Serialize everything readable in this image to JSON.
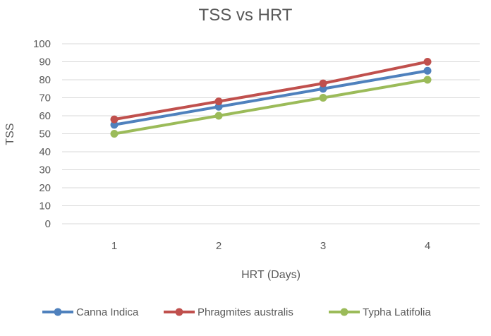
{
  "chart_data": {
    "type": "line",
    "title": "TSS vs HRT",
    "xlabel": "HRT (Days)",
    "ylabel": "TSS",
    "x": [
      "1",
      "2",
      "3",
      "4"
    ],
    "ylim": [
      0,
      100
    ],
    "yticks": [
      "0",
      "10",
      "20",
      "30",
      "40",
      "50",
      "60",
      "70",
      "80",
      "90",
      "100"
    ],
    "grid": true,
    "legend_position": "bottom",
    "series": [
      {
        "name": "Canna Indica",
        "color": "#4f81bd",
        "values": [
          55,
          65,
          75,
          85
        ]
      },
      {
        "name": "Phragmites australis",
        "color": "#c0504d",
        "values": [
          58,
          68,
          78,
          90
        ]
      },
      {
        "name": "Typha Latifolia",
        "color": "#9bbb59",
        "values": [
          50,
          60,
          70,
          80
        ]
      }
    ]
  }
}
